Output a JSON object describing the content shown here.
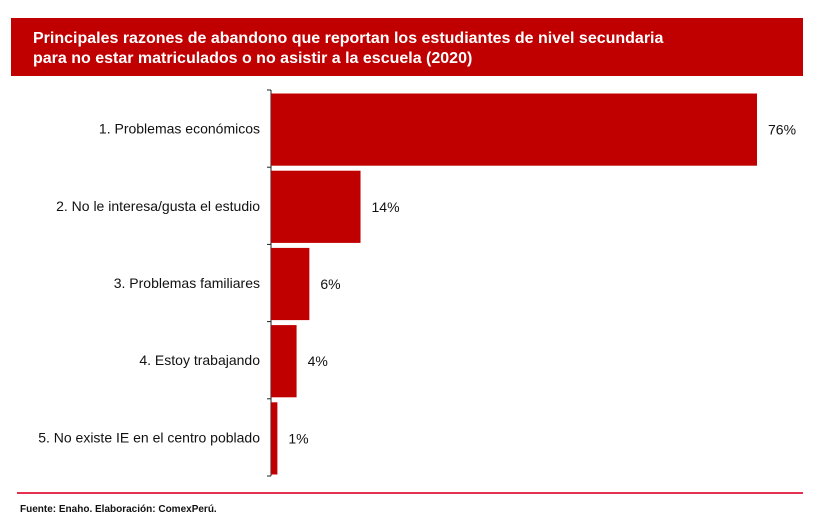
{
  "title_lines": [
    "Principales razones de abandono que reportan los estudiantes de nivel secundaria",
    "para no estar matriculados o no asistir a la escuela (2020)"
  ],
  "footer": "Fuente: Enaho. Elaboración: ComexPerú.",
  "colors": {
    "bar": "#c00000",
    "title_bg": "#c00000",
    "rule": "#e3314f"
  },
  "chart_data": {
    "type": "bar",
    "orientation": "horizontal",
    "title": "Principales razones de abandono que reportan los estudiantes de nivel secundaria para no estar matriculados o no asistir a la escuela (2020)",
    "categories": [
      "1. Problemas económicos",
      "2. No le interesa/gusta el estudio",
      "3. Problemas familiares",
      "4. Estoy trabajando",
      "5. No existe IE en el centro poblado"
    ],
    "values": [
      76,
      14,
      6,
      4,
      1
    ],
    "data_labels": [
      "76%",
      "14%",
      "6%",
      "4%",
      "1%"
    ],
    "unit": "%",
    "xlim": [
      0,
      76
    ],
    "grid": false,
    "legend": "none"
  }
}
